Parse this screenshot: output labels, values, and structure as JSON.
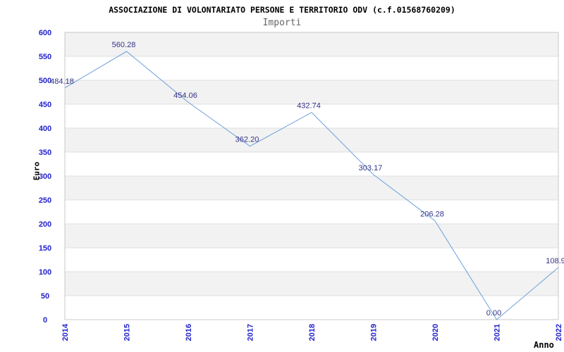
{
  "chart_data": {
    "type": "line",
    "title": "ASSOCIAZIONE DI VOLONTARIATO PERSONE E TERRITORIO ODV (c.f.01568760209)",
    "subtitle": "Importi",
    "xlabel": "Anno",
    "ylabel": "Euro",
    "categories": [
      "2014",
      "2015",
      "2016",
      "2017",
      "2018",
      "2019",
      "2020",
      "2021",
      "2022"
    ],
    "series": [
      {
        "name": "Importi",
        "values": [
          484.18,
          560.28,
          454.06,
          362.2,
          432.74,
          303.17,
          206.28,
          0,
          108.9
        ],
        "point_labels": [
          "484.18",
          "560.28",
          "454.06",
          "362.20",
          "432.74",
          "303.17",
          "206.28",
          "0.00",
          "108.9"
        ]
      }
    ],
    "ylim": [
      0,
      600
    ],
    "yticks": [
      0,
      50,
      100,
      150,
      200,
      250,
      300,
      350,
      400,
      450,
      500,
      550,
      600
    ],
    "legend": "none",
    "grid": "alternating-horizontal-bands",
    "colors": {
      "line": "#6b9fdc",
      "axis_tick_label": "#2222cc",
      "point_label": "#333388",
      "band_gray": "#f2f2f2",
      "band_white": "#ffffff",
      "gridline": "#d9d9d9",
      "plot_border": "#c8c8c8",
      "title": "#000000",
      "subtitle": "#666666",
      "axis_title": "#000000"
    }
  }
}
